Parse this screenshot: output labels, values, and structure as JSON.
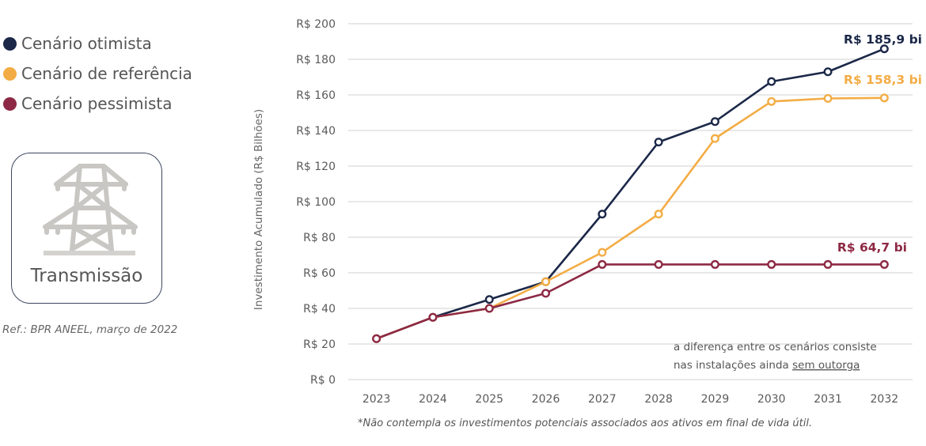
{
  "legend": [
    {
      "label": "Cenário otimista",
      "color": "#1b2848"
    },
    {
      "label": "Cenário de referência",
      "color": "#f3ac45"
    },
    {
      "label": "Cenário pessimista",
      "color": "#8d2944"
    }
  ],
  "category_box": {
    "icon": "transmission-tower-icon",
    "label": "Transmissão"
  },
  "reference": "Ref.: BPR ANEEL, março de 2022",
  "chart_data": {
    "type": "line",
    "title": "",
    "xlabel": "",
    "ylabel": "Investimento Acumulado (R$ Bilhões)",
    "x": [
      "2023",
      "2024",
      "2025",
      "2026",
      "2027",
      "2028",
      "2029",
      "2030",
      "2031",
      "2032"
    ],
    "ylim": [
      0,
      200
    ],
    "yticks": [
      0,
      20,
      40,
      60,
      80,
      100,
      120,
      140,
      160,
      180,
      200
    ],
    "ytick_prefix": "R$ ",
    "grid": true,
    "legend_position": "top-left (outside plot)",
    "series": [
      {
        "name": "Cenário otimista",
        "color": "#1b2848",
        "values": [
          23,
          35,
          45,
          55,
          93,
          133.5,
          145,
          167.5,
          173,
          185.9
        ],
        "end_label": "R$ 185,9 bi"
      },
      {
        "name": "Cenário de referência",
        "color": "#f3ac45",
        "values": [
          23,
          35,
          40,
          55,
          71.5,
          93,
          135.5,
          156.3,
          158,
          158.3
        ],
        "end_label": "R$ 158,3 bi"
      },
      {
        "name": "Cenário pessimista",
        "color": "#8d2944",
        "values": [
          23,
          35,
          40,
          48.5,
          64.7,
          64.7,
          64.7,
          64.7,
          64.7,
          64.7
        ],
        "end_label": "R$ 64,7 bi"
      }
    ],
    "annotation": {
      "line1": "a diferença entre os cenários consiste",
      "line2_prefix": "nas instalações ainda ",
      "line2_underlined": "sem outorga"
    },
    "footnote": "*Não contempla os investimentos potenciais associados aos ativos em final de vida útil."
  }
}
